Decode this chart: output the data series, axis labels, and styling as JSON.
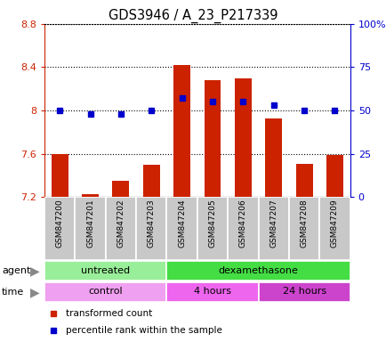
{
  "title": "GDS3946 / A_23_P217339",
  "samples": [
    "GSM847200",
    "GSM847201",
    "GSM847202",
    "GSM847203",
    "GSM847204",
    "GSM847205",
    "GSM847206",
    "GSM847207",
    "GSM847208",
    "GSM847209"
  ],
  "transformed_count": [
    7.6,
    7.23,
    7.35,
    7.5,
    8.42,
    8.28,
    8.3,
    7.93,
    7.51,
    7.59
  ],
  "percentile_rank": [
    50,
    48,
    48,
    50,
    57,
    55,
    55,
    53,
    50,
    50
  ],
  "ylim_left": [
    7.2,
    8.8
  ],
  "ylim_right": [
    0,
    100
  ],
  "yticks_left": [
    7.2,
    7.6,
    8.0,
    8.4,
    8.8
  ],
  "ytick_labels_left": [
    "7.2",
    "7.6",
    "8",
    "8.4",
    "8.8"
  ],
  "yticks_right": [
    0,
    25,
    50,
    75,
    100
  ],
  "ytick_labels_right": [
    "0",
    "25",
    "50",
    "75",
    "100%"
  ],
  "bar_color": "#cc2200",
  "dot_color": "#0000cc",
  "bar_bottom": 7.2,
  "bar_width": 0.55,
  "agent_groups": [
    {
      "label": "untreated",
      "start": 0,
      "end": 4,
      "color": "#99ee99"
    },
    {
      "label": "dexamethasone",
      "start": 4,
      "end": 10,
      "color": "#44dd44"
    }
  ],
  "time_groups": [
    {
      "label": "control",
      "start": 0,
      "end": 4,
      "color": "#f0a0f0"
    },
    {
      "label": "4 hours",
      "start": 4,
      "end": 7,
      "color": "#ee66ee"
    },
    {
      "label": "24 hours",
      "start": 7,
      "end": 10,
      "color": "#cc44cc"
    }
  ],
  "legend_items": [
    {
      "label": "transformed count",
      "color": "#cc2200"
    },
    {
      "label": "percentile rank within the sample",
      "color": "#0000cc"
    }
  ],
  "tick_area_color": "#c8c8c8"
}
